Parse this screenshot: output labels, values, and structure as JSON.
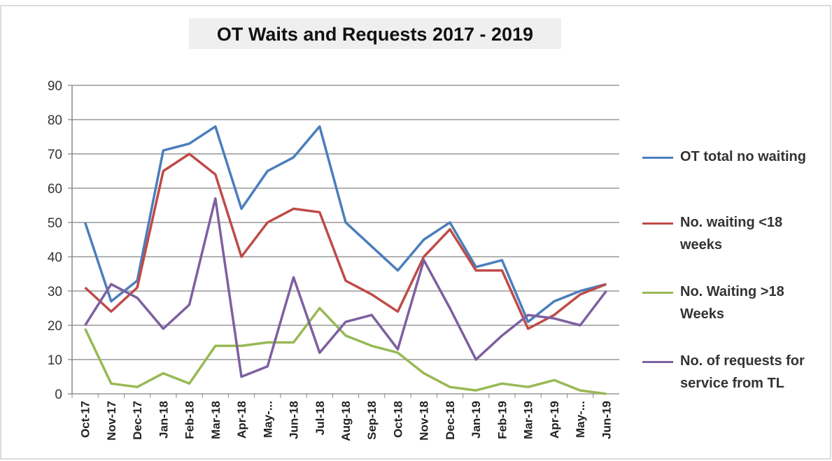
{
  "chart_data": {
    "type": "line",
    "title": "OT Waits and Requests 2017 - 2019",
    "categories": [
      "Oct-17",
      "Nov-17",
      "Dec-17",
      "Jan-18",
      "Feb-18",
      "Mar-18",
      "Apr-18",
      "May-...",
      "Jun-18",
      "Jul-18",
      "Aug-18",
      "Sep-18",
      "Oct-18",
      "Nov-18",
      "Dec-18",
      "Jan-19",
      "Feb-19",
      "Mar-19",
      "Apr-19",
      "May-...",
      "Jun-19"
    ],
    "series": [
      {
        "name": "OT total no waiting",
        "color": "#4a7ebb",
        "values": [
          50,
          27,
          33,
          71,
          73,
          78,
          54,
          65,
          69,
          78,
          50,
          43,
          36,
          45,
          50,
          37,
          39,
          21,
          27,
          30,
          32
        ]
      },
      {
        "name": "No. waiting <18 weeks",
        "color": "#be4b48",
        "values": [
          31,
          24,
          31,
          65,
          70,
          64,
          40,
          50,
          54,
          53,
          33,
          29,
          24,
          40,
          48,
          36,
          36,
          19,
          23,
          29,
          32
        ]
      },
      {
        "name": "No. Waiting >18 Weeks",
        "color": "#98b954",
        "values": [
          19,
          3,
          2,
          6,
          3,
          14,
          14,
          15,
          15,
          25,
          17,
          14,
          12,
          6,
          2,
          1,
          3,
          2,
          4,
          1,
          0
        ]
      },
      {
        "name": "No. of requests for service from TL",
        "color": "#7d60a0",
        "values": [
          20,
          32,
          28,
          19,
          26,
          57,
          5,
          8,
          34,
          12,
          21,
          23,
          13,
          39,
          25,
          10,
          17,
          23,
          22,
          20,
          30
        ]
      }
    ],
    "ylim": [
      0,
      90
    ],
    "yticks": [
      0,
      10,
      20,
      30,
      40,
      50,
      60,
      70,
      80,
      90
    ],
    "grid": true,
    "legend": "right"
  }
}
